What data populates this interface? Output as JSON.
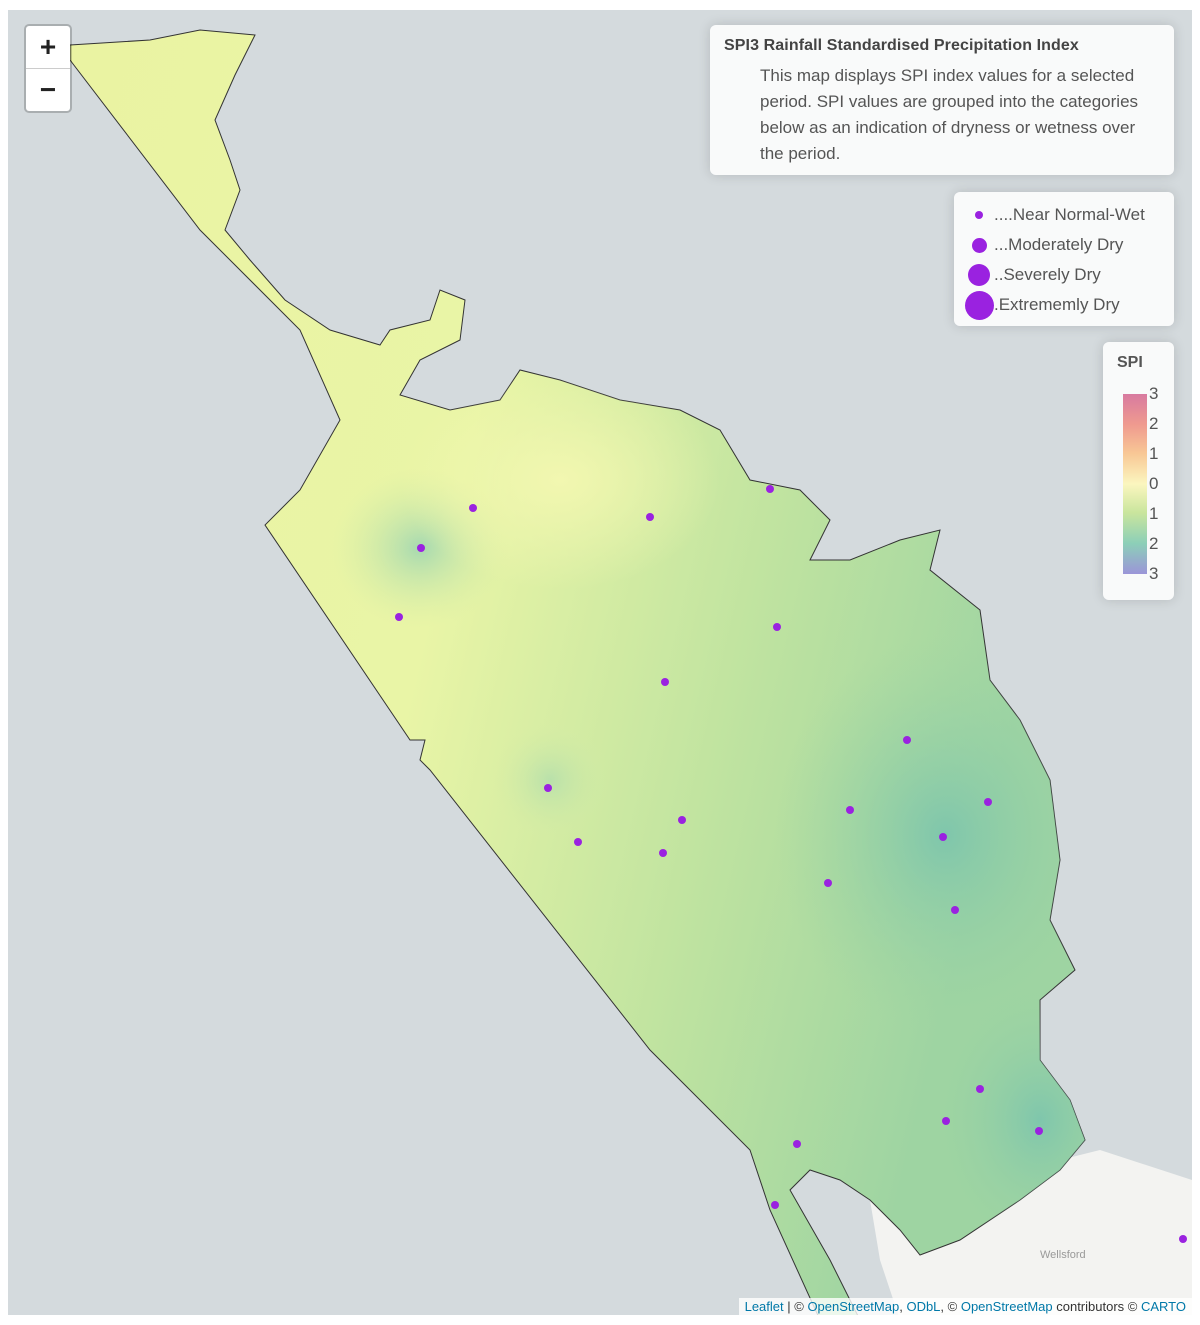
{
  "controls": {
    "zoom_in": "+",
    "zoom_out": "−"
  },
  "info": {
    "title": "SPI3 Rainfall Standardised Precipitation Index",
    "description": "This map displays SPI index values for a selected period. SPI values are grouped into the categories below as an indication of dryness or wetness over the period."
  },
  "legend": {
    "items": [
      {
        "label": "....Near Normal-Wet"
      },
      {
        "label": "...Moderately Dry"
      },
      {
        "label": "..Severely Dry"
      },
      {
        "label": ".Extrememly Dry"
      }
    ],
    "marker_color": "#9a22e0"
  },
  "scale": {
    "title": "SPI",
    "ticks": [
      "3",
      "2",
      "1",
      "0",
      "1",
      "2",
      "3"
    ],
    "colors": [
      "#d87aa0",
      "#ef9a8f",
      "#f8c795",
      "#fbf6bf",
      "#c9e59d",
      "#8ccfb8",
      "#9b95d8"
    ]
  },
  "basemap": {
    "place_label": "Wellsford"
  },
  "attribution": {
    "leaflet": "Leaflet",
    "sep1": " | © ",
    "osm1": "OpenStreetMap",
    "comma": ", ",
    "odbl": "ODbL",
    "sep2": ", © ",
    "osm2": "OpenStreetMap",
    "contrib": " contributors © ",
    "carto": "CARTO"
  }
}
